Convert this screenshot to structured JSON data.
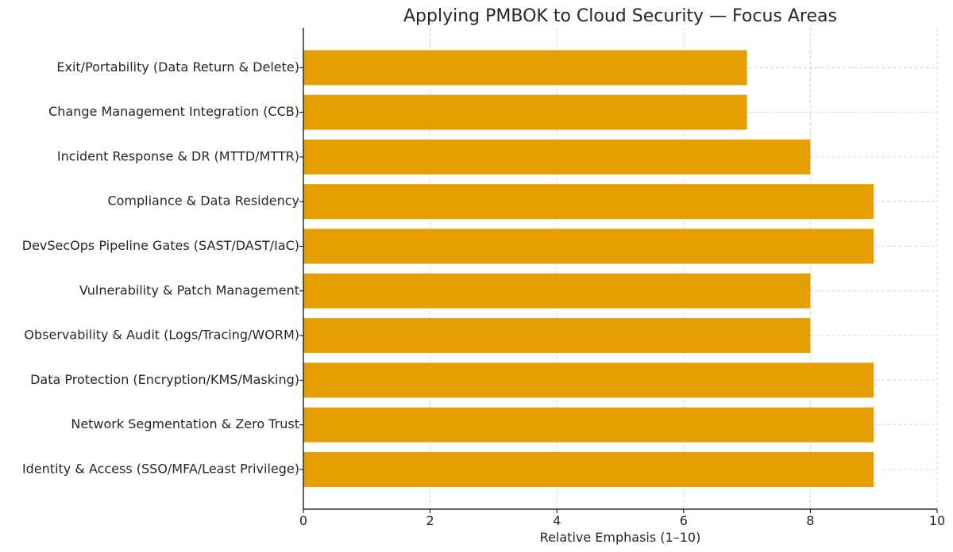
{
  "chart_data": {
    "type": "bar",
    "orientation": "horizontal",
    "title": "Applying PMBOK to Cloud Security — Focus Areas",
    "xlabel": "Relative Emphasis (1–10)",
    "ylabel": "",
    "categories": [
      "Identity & Access (SSO/MFA/Least Privilege)",
      "Network Segmentation & Zero Trust",
      "Data Protection (Encryption/KMS/Masking)",
      "Observability & Audit (Logs/Tracing/WORM)",
      "Vulnerability & Patch Management",
      "DevSecOps Pipeline Gates (SAST/DAST/IaC)",
      "Compliance & Data Residency",
      "Incident Response & DR (MTTD/MTTR)",
      "Change Management Integration (CCB)",
      "Exit/Portability (Data Return & Delete)"
    ],
    "values": [
      9,
      9,
      9,
      8,
      8,
      9,
      9,
      8,
      7,
      7
    ],
    "xlim": [
      0,
      10
    ],
    "xticks": [
      0,
      2,
      4,
      6,
      8,
      10
    ],
    "grid": true,
    "bar_color": "#E69F00"
  }
}
